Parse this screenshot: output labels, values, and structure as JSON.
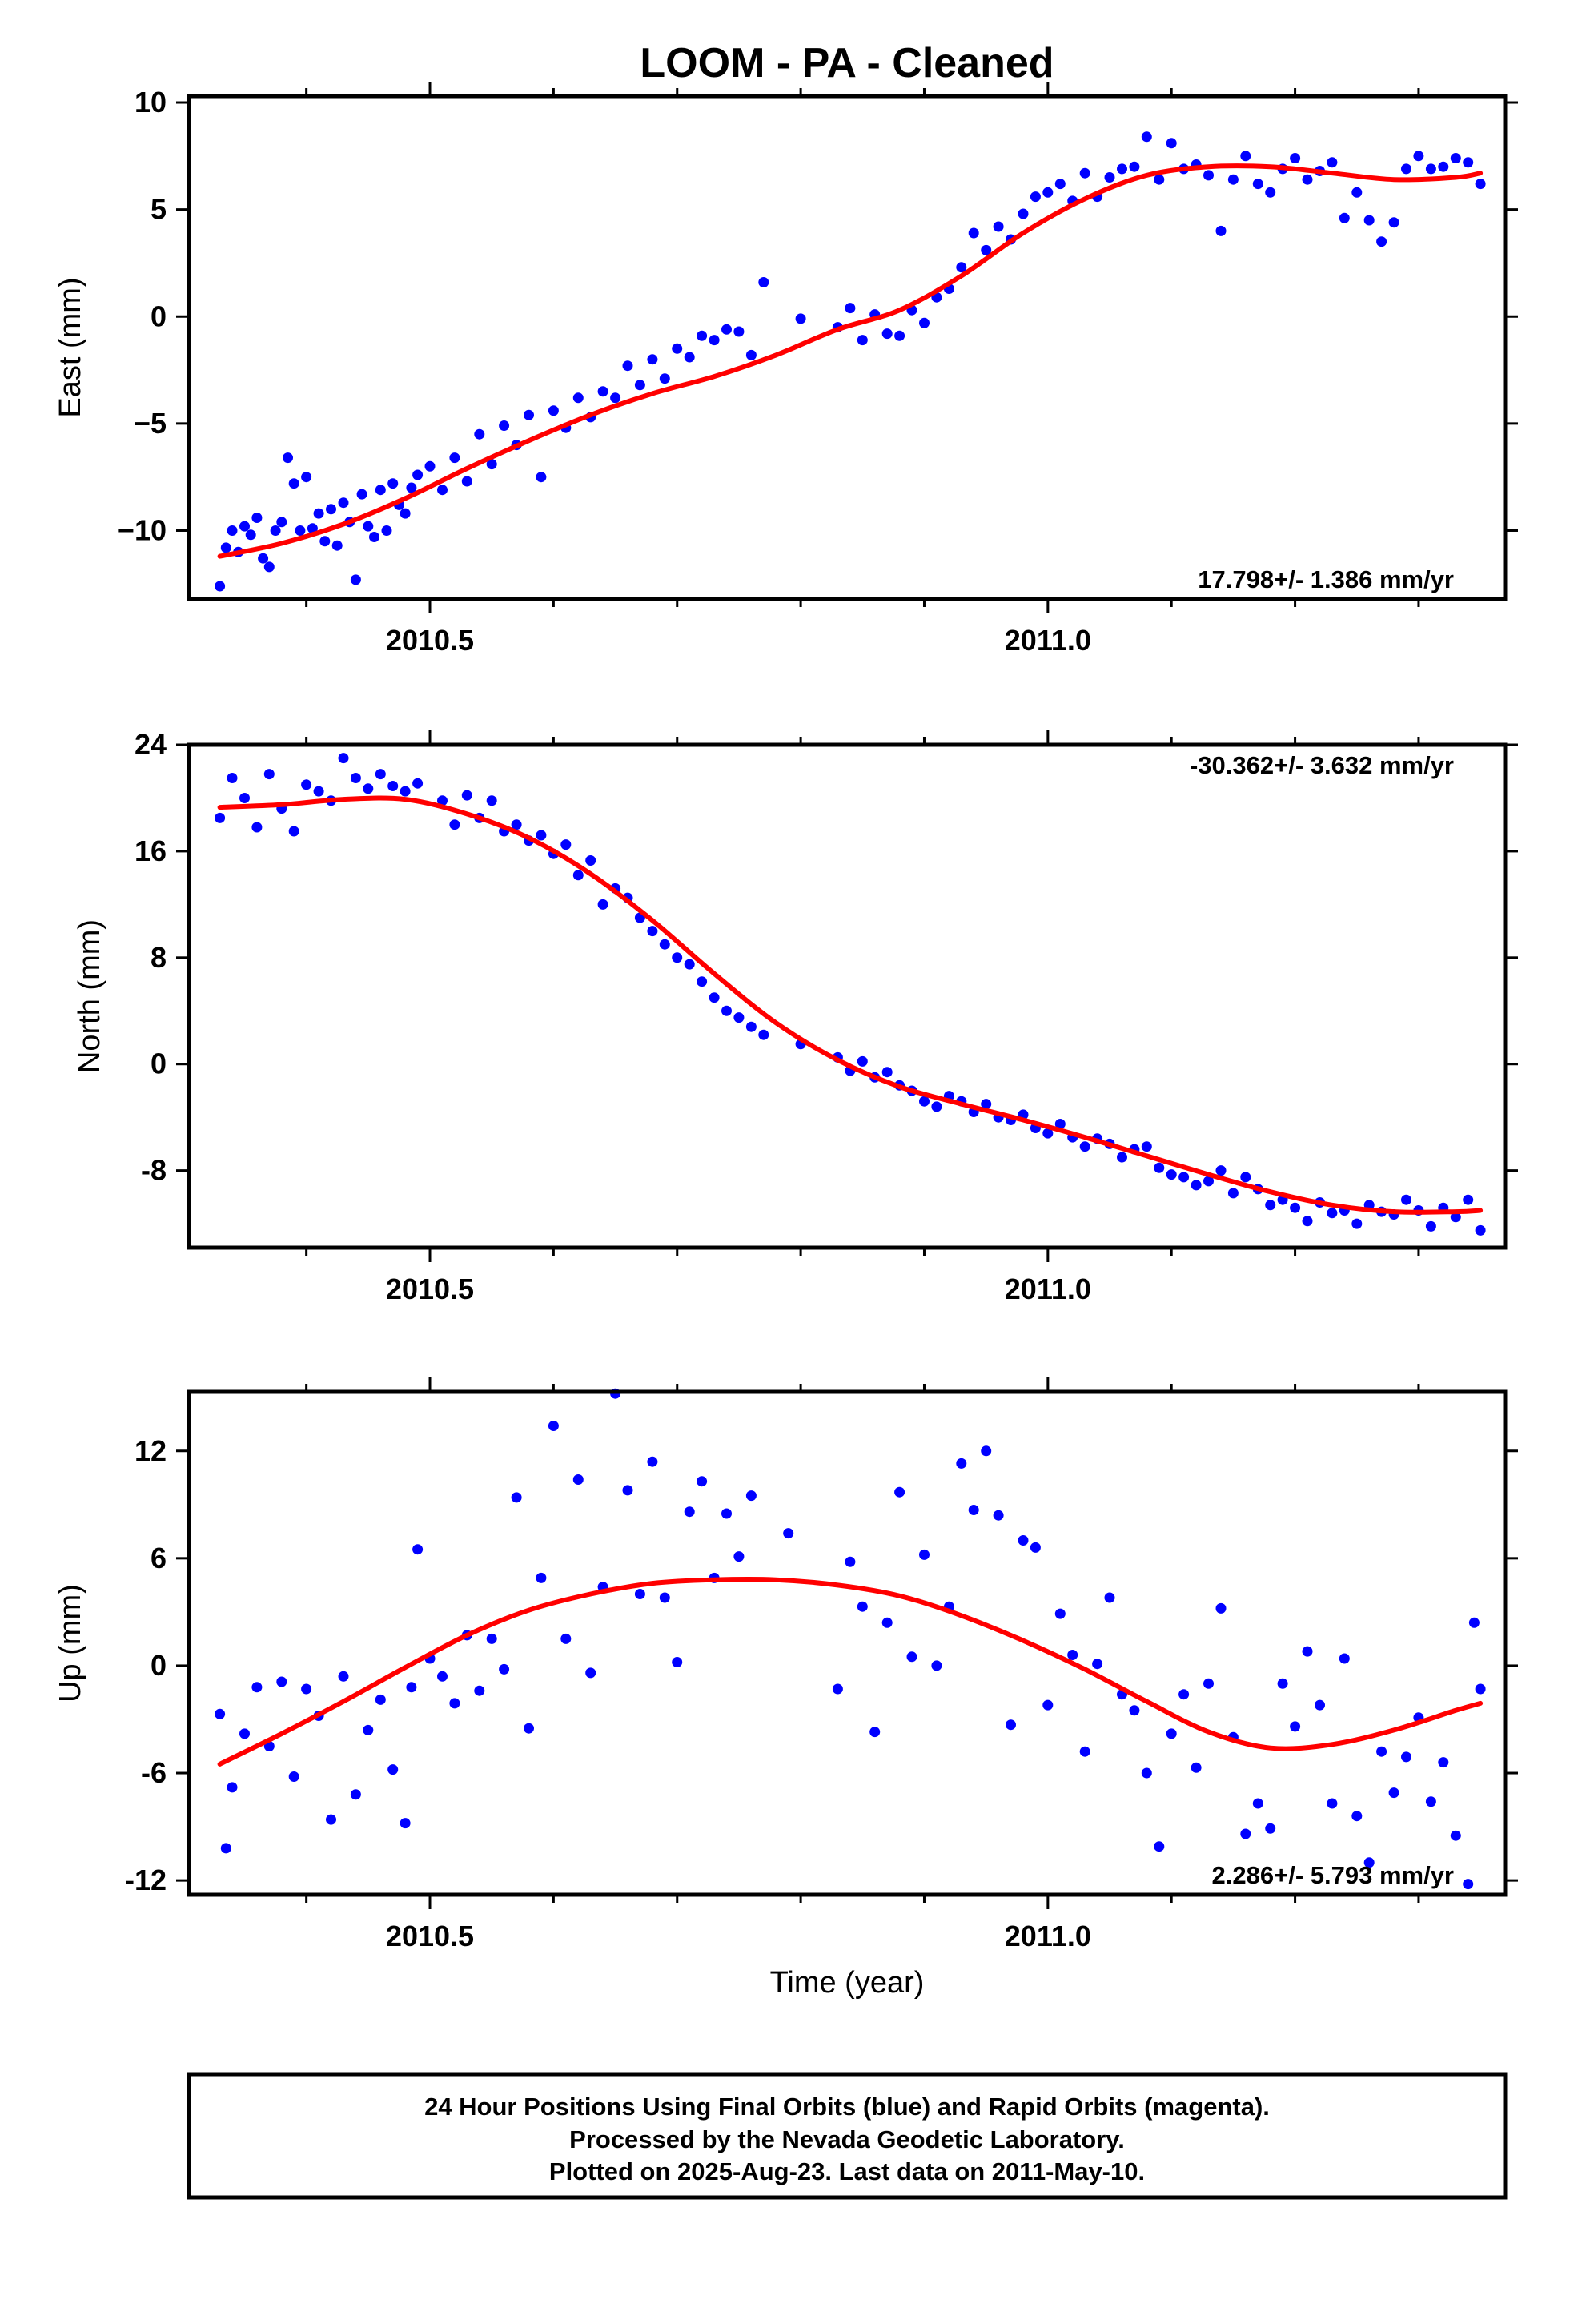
{
  "title": "LOOM  - PA - Cleaned",
  "colors": {
    "points": "#0000ff",
    "fit": "#ff0000",
    "frame": "#000000"
  },
  "footer": {
    "lines": [
      "24 Hour Positions Using Final Orbits (blue) and Rapid Orbits (magenta).",
      "Processed by the Nevada Geodetic Laboratory.",
      "Plotted on 2025-Aug-23. Last data on 2011-May-10."
    ]
  },
  "chart_data": [
    {
      "type": "scatter",
      "ylabel": "East (mm)",
      "xlabel": "",
      "rate_label": "17.798+/- 1.386 mm/yr",
      "rate_position": "bottom-right",
      "xlim": [
        2010.305,
        2011.37
      ],
      "ylim": [
        -13.2,
        10.3
      ],
      "x_ticks": [
        2010.5,
        2011.0
      ],
      "x_tick_labels": [
        "2010.5",
        "2011.0"
      ],
      "y_ticks": [
        10,
        5,
        0,
        -5,
        -10
      ],
      "y_tick_labels": [
        "10",
        "5",
        "0",
        "−5",
        "−10"
      ],
      "series": [
        {
          "kind": "fit",
          "x": [
            2010.33,
            2010.38,
            2010.43,
            2010.48,
            2010.53,
            2010.58,
            2010.63,
            2010.68,
            2010.73,
            2010.78,
            2010.83,
            2010.88,
            2010.93,
            2010.98,
            2011.03,
            2011.08,
            2011.13,
            2011.18,
            2011.23,
            2011.28,
            2011.33,
            2011.35
          ],
          "y": [
            -11.2,
            -10.6,
            -9.7,
            -8.5,
            -7.1,
            -5.8,
            -4.6,
            -3.6,
            -2.8,
            -1.8,
            -0.6,
            0.3,
            1.9,
            3.9,
            5.5,
            6.6,
            7.0,
            7.0,
            6.7,
            6.4,
            6.5,
            6.7
          ]
        },
        {
          "kind": "points",
          "x": [
            2010.33,
            2010.335,
            2010.34,
            2010.345,
            2010.35,
            2010.355,
            2010.36,
            2010.365,
            2010.37,
            2010.375,
            2010.38,
            2010.385,
            2010.39,
            2010.395,
            2010.4,
            2010.405,
            2010.41,
            2010.415,
            2010.42,
            2010.425,
            2010.43,
            2010.435,
            2010.44,
            2010.445,
            2010.45,
            2010.455,
            2010.46,
            2010.465,
            2010.47,
            2010.475,
            2010.48,
            2010.485,
            2010.49,
            2010.5,
            2010.51,
            2010.52,
            2010.53,
            2010.54,
            2010.55,
            2010.56,
            2010.57,
            2010.58,
            2010.59,
            2010.6,
            2010.61,
            2010.62,
            2010.63,
            2010.64,
            2010.65,
            2010.66,
            2010.67,
            2010.68,
            2010.69,
            2010.7,
            2010.71,
            2010.72,
            2010.73,
            2010.74,
            2010.75,
            2010.76,
            2010.77,
            2010.8,
            2010.83,
            2010.84,
            2010.85,
            2010.86,
            2010.87,
            2010.88,
            2010.89,
            2010.9,
            2010.91,
            2010.92,
            2010.93,
            2010.94,
            2010.95,
            2010.96,
            2010.97,
            2010.98,
            2010.99,
            2011.0,
            2011.01,
            2011.02,
            2011.03,
            2011.04,
            2011.05,
            2011.06,
            2011.07,
            2011.08,
            2011.09,
            2011.1,
            2011.11,
            2011.12,
            2011.13,
            2011.14,
            2011.15,
            2011.16,
            2011.17,
            2011.18,
            2011.19,
            2011.2,
            2011.21,
            2011.22,
            2011.23,
            2011.24,
            2011.25,
            2011.26,
            2011.27,
            2011.28,
            2011.29,
            2011.3,
            2011.31,
            2011.32,
            2011.33,
            2011.34,
            2011.35
          ],
          "y": [
            -12.6,
            -10.8,
            -10.0,
            -11.0,
            -9.8,
            -10.2,
            -9.4,
            -11.3,
            -11.7,
            -10.0,
            -9.6,
            -6.6,
            -7.8,
            -10.0,
            -7.5,
            -9.9,
            -9.2,
            -10.5,
            -9.0,
            -10.7,
            -8.7,
            -9.6,
            -12.3,
            -8.3,
            -9.8,
            -10.3,
            -8.1,
            -10.0,
            -7.8,
            -8.8,
            -9.2,
            -8.0,
            -7.4,
            -7.0,
            -8.1,
            -6.6,
            -7.7,
            -5.5,
            -6.9,
            -5.1,
            -6.0,
            -4.6,
            -7.5,
            -4.4,
            -5.2,
            -3.8,
            -4.7,
            -3.5,
            -3.8,
            -2.3,
            -3.2,
            -2.0,
            -2.9,
            -1.5,
            -1.9,
            -0.9,
            -1.1,
            -0.6,
            -0.7,
            -1.8,
            1.6,
            -0.1,
            -0.5,
            0.4,
            -1.1,
            0.1,
            -0.8,
            -0.9,
            0.3,
            -0.3,
            0.9,
            1.3,
            2.3,
            3.9,
            3.1,
            4.2,
            3.6,
            4.8,
            5.6,
            5.8,
            6.2,
            5.4,
            6.7,
            5.6,
            6.5,
            6.9,
            7.0,
            8.4,
            6.4,
            8.1,
            6.9,
            7.1,
            6.6,
            4.0,
            6.4,
            7.5,
            6.2,
            5.8,
            6.9,
            7.4,
            6.4,
            6.8,
            7.2,
            4.6,
            5.8,
            4.5,
            3.5,
            4.4,
            6.9,
            7.5,
            6.9,
            7.0,
            7.4,
            7.2,
            6.2
          ]
        }
      ]
    },
    {
      "type": "scatter",
      "ylabel": "North (mm)",
      "xlabel": "",
      "rate_label": "-30.362+/- 3.632 mm/yr",
      "rate_position": "top-right",
      "xlim": [
        2010.305,
        2011.37
      ],
      "ylim": [
        -13.8,
        24
      ],
      "x_ticks": [
        2010.5,
        2011.0
      ],
      "x_tick_labels": [
        "2010.5",
        "2011.0"
      ],
      "y_ticks": [
        24,
        16,
        8,
        0,
        -8
      ],
      "y_tick_labels": [
        "24",
        "16",
        "8",
        "0",
        "-8"
      ],
      "series": [
        {
          "kind": "fit",
          "x": [
            2010.33,
            2010.38,
            2010.43,
            2010.48,
            2010.53,
            2010.58,
            2010.63,
            2010.68,
            2010.73,
            2010.78,
            2010.83,
            2010.88,
            2010.93,
            2010.98,
            2011.03,
            2011.08,
            2011.13,
            2011.18,
            2011.23,
            2011.28,
            2011.33,
            2011.35
          ],
          "y": [
            19.3,
            19.5,
            19.9,
            19.9,
            18.8,
            17.0,
            14.3,
            10.8,
            6.8,
            3.1,
            0.3,
            -1.7,
            -3.0,
            -4.2,
            -5.5,
            -6.9,
            -8.3,
            -9.6,
            -10.6,
            -11.1,
            -11.1,
            -11.0
          ]
        },
        {
          "kind": "points",
          "x": [
            2010.33,
            2010.34,
            2010.35,
            2010.36,
            2010.37,
            2010.38,
            2010.39,
            2010.4,
            2010.41,
            2010.42,
            2010.43,
            2010.44,
            2010.45,
            2010.46,
            2010.47,
            2010.48,
            2010.49,
            2010.51,
            2010.52,
            2010.53,
            2010.54,
            2010.55,
            2010.56,
            2010.57,
            2010.58,
            2010.59,
            2010.6,
            2010.61,
            2010.62,
            2010.63,
            2010.64,
            2010.65,
            2010.66,
            2010.67,
            2010.68,
            2010.69,
            2010.7,
            2010.71,
            2010.72,
            2010.73,
            2010.74,
            2010.75,
            2010.76,
            2010.77,
            2010.8,
            2010.83,
            2010.84,
            2010.85,
            2010.86,
            2010.87,
            2010.88,
            2010.89,
            2010.9,
            2010.91,
            2010.92,
            2010.93,
            2010.94,
            2010.95,
            2010.96,
            2010.97,
            2010.98,
            2010.99,
            2011.0,
            2011.01,
            2011.02,
            2011.03,
            2011.04,
            2011.05,
            2011.06,
            2011.07,
            2011.08,
            2011.09,
            2011.1,
            2011.11,
            2011.12,
            2011.13,
            2011.14,
            2011.15,
            2011.16,
            2011.17,
            2011.18,
            2011.19,
            2011.2,
            2011.21,
            2011.22,
            2011.23,
            2011.24,
            2011.25,
            2011.26,
            2011.27,
            2011.28,
            2011.29,
            2011.3,
            2011.31,
            2011.32,
            2011.33,
            2011.34,
            2011.35
          ],
          "y": [
            18.5,
            21.5,
            20.0,
            17.8,
            21.8,
            19.2,
            17.5,
            21.0,
            20.5,
            19.8,
            23.0,
            21.5,
            20.7,
            21.8,
            20.9,
            20.5,
            21.1,
            19.8,
            18.0,
            20.2,
            18.5,
            19.8,
            17.5,
            18.0,
            16.8,
            17.2,
            15.8,
            16.5,
            14.2,
            15.3,
            12.0,
            13.2,
            12.5,
            11.0,
            10.0,
            9.0,
            8.0,
            7.5,
            6.2,
            5.0,
            4.0,
            3.5,
            2.8,
            2.2,
            1.5,
            0.5,
            -0.5,
            0.2,
            -1.0,
            -0.6,
            -1.6,
            -2.0,
            -2.8,
            -3.2,
            -2.4,
            -2.8,
            -3.6,
            -3.0,
            -4.0,
            -4.2,
            -3.8,
            -4.8,
            -5.2,
            -4.5,
            -5.5,
            -6.2,
            -5.6,
            -6.0,
            -7.0,
            -6.4,
            -6.2,
            -7.8,
            -8.3,
            -8.5,
            -9.1,
            -8.8,
            -8.0,
            -9.7,
            -8.5,
            -9.4,
            -10.6,
            -10.2,
            -10.8,
            -11.8,
            -10.4,
            -11.2,
            -11.0,
            -12.0,
            -10.6,
            -11.1,
            -11.3,
            -10.2,
            -11.0,
            -12.2,
            -10.8,
            -11.5,
            -10.2,
            -12.5
          ]
        }
      ]
    },
    {
      "type": "scatter",
      "ylabel": "Up (mm)",
      "xlabel": "Time (year)",
      "rate_label": "2.286+/- 5.793 mm/yr",
      "rate_position": "bottom-right",
      "xlim": [
        2010.305,
        2011.37
      ],
      "ylim": [
        -12.8,
        15.3
      ],
      "x_ticks": [
        2010.5,
        2011.0
      ],
      "x_tick_labels": [
        "2010.5",
        "2011.0"
      ],
      "y_ticks": [
        12,
        6,
        0,
        -6,
        -12
      ],
      "y_tick_labels": [
        "12",
        "6",
        "0",
        "-6",
        "-12"
      ],
      "series": [
        {
          "kind": "fit",
          "x": [
            2010.33,
            2010.38,
            2010.43,
            2010.48,
            2010.53,
            2010.58,
            2010.63,
            2010.68,
            2010.73,
            2010.78,
            2010.83,
            2010.88,
            2010.93,
            2010.98,
            2011.03,
            2011.08,
            2011.13,
            2011.18,
            2011.23,
            2011.28,
            2011.33,
            2011.35
          ],
          "y": [
            -5.5,
            -3.8,
            -2.0,
            -0.1,
            1.7,
            3.1,
            4.0,
            4.6,
            4.8,
            4.8,
            4.5,
            3.9,
            2.8,
            1.4,
            -0.2,
            -2.0,
            -3.7,
            -4.6,
            -4.4,
            -3.6,
            -2.5,
            -2.1
          ]
        },
        {
          "kind": "points",
          "x": [
            2010.33,
            2010.335,
            2010.34,
            2010.35,
            2010.36,
            2010.37,
            2010.38,
            2010.39,
            2010.4,
            2010.41,
            2010.42,
            2010.43,
            2010.44,
            2010.45,
            2010.46,
            2010.47,
            2010.48,
            2010.485,
            2010.49,
            2010.5,
            2010.51,
            2010.52,
            2010.53,
            2010.54,
            2010.55,
            2010.56,
            2010.57,
            2010.58,
            2010.59,
            2010.6,
            2010.61,
            2010.62,
            2010.63,
            2010.64,
            2010.65,
            2010.66,
            2010.67,
            2010.68,
            2010.69,
            2010.7,
            2010.71,
            2010.72,
            2010.73,
            2010.74,
            2010.75,
            2010.76,
            2010.79,
            2010.83,
            2010.84,
            2010.85,
            2010.86,
            2010.87,
            2010.88,
            2010.89,
            2010.9,
            2010.91,
            2010.92,
            2010.93,
            2010.94,
            2010.95,
            2010.96,
            2010.97,
            2010.98,
            2010.99,
            2011.0,
            2011.01,
            2011.02,
            2011.03,
            2011.04,
            2011.05,
            2011.06,
            2011.07,
            2011.08,
            2011.09,
            2011.1,
            2011.11,
            2011.12,
            2011.13,
            2011.14,
            2011.15,
            2011.16,
            2011.17,
            2011.18,
            2011.19,
            2011.2,
            2011.21,
            2011.22,
            2011.23,
            2011.24,
            2011.25,
            2011.26,
            2011.27,
            2011.28,
            2011.29,
            2011.3,
            2011.31,
            2011.32,
            2011.33,
            2011.34,
            2011.345,
            2011.35
          ],
          "y": [
            -2.7,
            -10.2,
            -6.8,
            -3.8,
            -1.2,
            -4.5,
            -0.9,
            -6.2,
            -1.3,
            -2.8,
            -8.6,
            -0.6,
            -7.2,
            -3.6,
            -1.9,
            -5.8,
            -8.8,
            -1.2,
            6.5,
            0.4,
            -0.6,
            -2.1,
            1.7,
            -1.4,
            1.5,
            -0.2,
            9.4,
            -3.5,
            4.9,
            13.4,
            1.5,
            10.4,
            -0.4,
            4.4,
            15.2,
            9.8,
            4.0,
            11.4,
            3.8,
            0.2,
            8.6,
            10.3,
            4.9,
            8.5,
            6.1,
            9.5,
            7.4,
            -1.3,
            5.8,
            3.3,
            -3.7,
            2.4,
            9.7,
            0.5,
            6.2,
            0.0,
            3.3,
            11.3,
            8.7,
            12.0,
            8.4,
            -3.3,
            7.0,
            6.6,
            -2.2,
            2.9,
            0.6,
            -4.8,
            0.1,
            3.8,
            -1.6,
            -2.5,
            -6.0,
            -10.1,
            -3.8,
            -1.6,
            -5.7,
            -1.0,
            3.2,
            -4.0,
            -9.4,
            -7.7,
            -9.1,
            -1.0,
            -3.4,
            0.8,
            -2.2,
            -7.7,
            0.4,
            -8.4,
            -11.0,
            -4.8,
            -7.1,
            -5.1,
            -2.9,
            -7.6,
            -5.4,
            -9.5,
            -12.2,
            2.4,
            -1.3
          ]
        }
      ]
    }
  ]
}
